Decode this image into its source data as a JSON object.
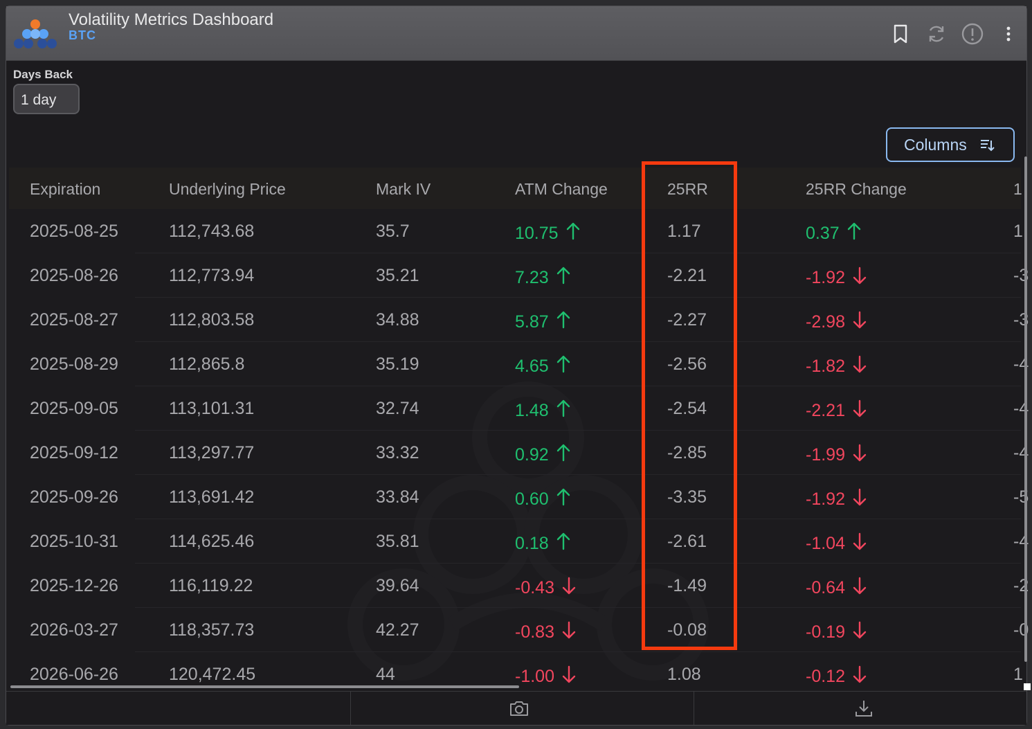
{
  "header": {
    "title": "Volatility Metrics Dashboard",
    "subtitle": "BTC",
    "icons": [
      "bookmark-icon",
      "refresh-icon",
      "info-icon",
      "more-vert-icon"
    ]
  },
  "filters": {
    "days_back_label": "Days Back",
    "days_back_value": "1 day"
  },
  "toolbar": {
    "columns_label": "Columns"
  },
  "table": {
    "columns": [
      "Expiration",
      "Underlying Price",
      "Mark IV",
      "ATM Change",
      "25RR",
      "25RR Change",
      "1"
    ],
    "rows": [
      {
        "expiration": "2025-08-25",
        "underlying": "112,743.68",
        "mark_iv": "35.7",
        "atm_change": "10.75",
        "atm_dir": "up",
        "rr25": "1.17",
        "rr25_change": "0.37",
        "rr25_dir": "up",
        "next": "1"
      },
      {
        "expiration": "2025-08-26",
        "underlying": "112,773.94",
        "mark_iv": "35.21",
        "atm_change": "7.23",
        "atm_dir": "up",
        "rr25": "-2.21",
        "rr25_change": "-1.92",
        "rr25_dir": "down",
        "next": "-3"
      },
      {
        "expiration": "2025-08-27",
        "underlying": "112,803.58",
        "mark_iv": "34.88",
        "atm_change": "5.87",
        "atm_dir": "up",
        "rr25": "-2.27",
        "rr25_change": "-2.98",
        "rr25_dir": "down",
        "next": "-3"
      },
      {
        "expiration": "2025-08-29",
        "underlying": "112,865.8",
        "mark_iv": "35.19",
        "atm_change": "4.65",
        "atm_dir": "up",
        "rr25": "-2.56",
        "rr25_change": "-1.82",
        "rr25_dir": "down",
        "next": "-4"
      },
      {
        "expiration": "2025-09-05",
        "underlying": "113,101.31",
        "mark_iv": "32.74",
        "atm_change": "1.48",
        "atm_dir": "up",
        "rr25": "-2.54",
        "rr25_change": "-2.21",
        "rr25_dir": "down",
        "next": "-4"
      },
      {
        "expiration": "2025-09-12",
        "underlying": "113,297.77",
        "mark_iv": "33.32",
        "atm_change": "0.92",
        "atm_dir": "up",
        "rr25": "-2.85",
        "rr25_change": "-1.99",
        "rr25_dir": "down",
        "next": "-4"
      },
      {
        "expiration": "2025-09-26",
        "underlying": "113,691.42",
        "mark_iv": "33.84",
        "atm_change": "0.60",
        "atm_dir": "up",
        "rr25": "-3.35",
        "rr25_change": "-1.92",
        "rr25_dir": "down",
        "next": "-5"
      },
      {
        "expiration": "2025-10-31",
        "underlying": "114,625.46",
        "mark_iv": "35.81",
        "atm_change": "0.18",
        "atm_dir": "up",
        "rr25": "-2.61",
        "rr25_change": "-1.04",
        "rr25_dir": "down",
        "next": "-4"
      },
      {
        "expiration": "2025-12-26",
        "underlying": "116,119.22",
        "mark_iv": "39.64",
        "atm_change": "-0.43",
        "atm_dir": "down",
        "rr25": "-1.49",
        "rr25_change": "-0.64",
        "rr25_dir": "down",
        "next": "-2"
      },
      {
        "expiration": "2026-03-27",
        "underlying": "118,357.73",
        "mark_iv": "42.27",
        "atm_change": "-0.83",
        "atm_dir": "down",
        "rr25": "-0.08",
        "rr25_change": "-0.19",
        "rr25_dir": "down",
        "next": "-0"
      },
      {
        "expiration": "2026-06-26",
        "underlying": "120,472.45",
        "mark_iv": "44",
        "atm_change": "-1.00",
        "atm_dir": "down",
        "rr25": "1.08",
        "rr25_change": "-0.12",
        "rr25_dir": "down",
        "next": "1"
      }
    ]
  },
  "footer": {
    "icons": [
      "camera-icon",
      "download-icon"
    ]
  },
  "colors": {
    "positive": "#1fbf6f",
    "negative": "#f2465e",
    "accent": "#5aa2f5",
    "highlight_box": "#f53a0f"
  }
}
